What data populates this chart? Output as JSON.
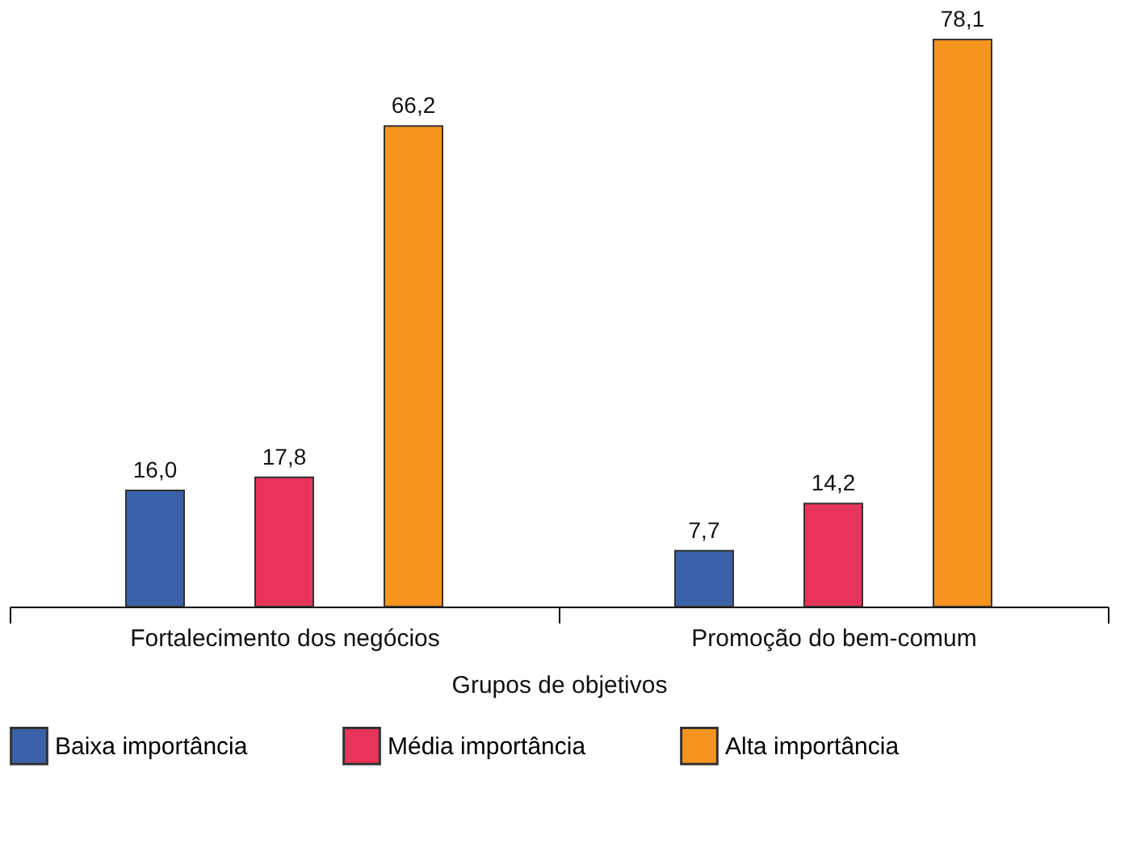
{
  "chart_data": {
    "type": "bar",
    "xlabel": "Grupos de objetivos",
    "categories": [
      "Fortalecimento dos negócios",
      "Promoção do bem-comum"
    ],
    "series": [
      {
        "name": "Baixa importância",
        "color": "#3b62a8",
        "values": [
          16.0,
          7.7
        ],
        "value_labels": [
          "16,0",
          "7,7"
        ]
      },
      {
        "name": "Média importância",
        "color": "#e8345a",
        "values": [
          17.8,
          14.2
        ],
        "value_labels": [
          "17,8",
          "14,2"
        ]
      },
      {
        "name": "Alta importância",
        "color": "#f7941d",
        "values": [
          66.2,
          78.1
        ],
        "value_labels": [
          "66,2",
          "78,1"
        ]
      }
    ],
    "legend": "bottom",
    "grid": false,
    "tick_labels": "x"
  }
}
